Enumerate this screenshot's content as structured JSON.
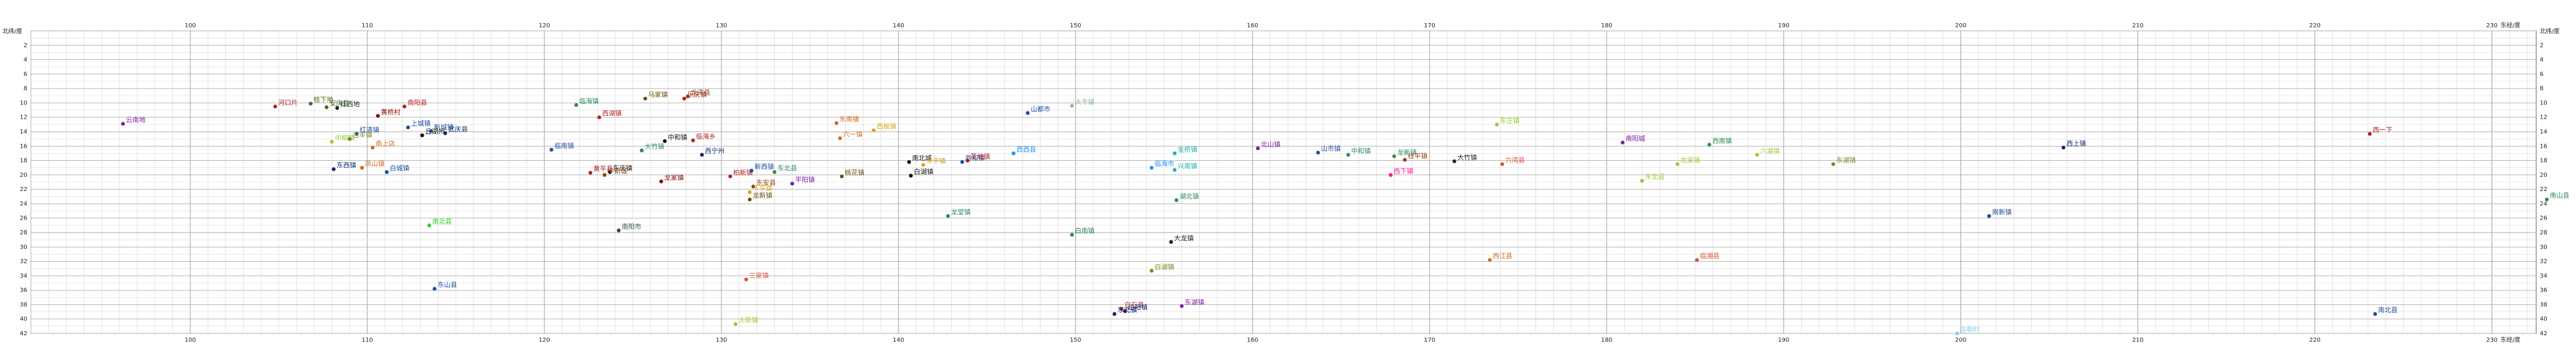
{
  "chart_data": {
    "type": "scatter",
    "xaxis_label": "东经/度",
    "yaxis_label": "北纬/度",
    "xlim": [
      91.0,
      232.5
    ],
    "ylim": [
      0,
      42
    ],
    "x_ticks": [
      100,
      110,
      120,
      130,
      140,
      150,
      160,
      170,
      180,
      190,
      200,
      210,
      220,
      230
    ],
    "y_ticks": [
      2,
      4,
      6,
      8,
      10,
      12,
      14,
      16,
      18,
      20,
      22,
      24,
      26,
      28,
      30,
      32,
      34,
      36,
      38,
      40,
      42
    ],
    "x_grid_step": 1,
    "y_grid_step": 1,
    "grid": true,
    "points": [
      {
        "x": 96.2,
        "y": 12.9,
        "label": "云南地",
        "color": "#7a1fa2"
      },
      {
        "x": 104.8,
        "y": 10.5,
        "label": "河口片",
        "color": "#b22222"
      },
      {
        "x": 106.8,
        "y": 10.1,
        "label": "桂下地",
        "color": "#3a6e1a"
      },
      {
        "x": 107.7,
        "y": 10.6,
        "label": "安庆县",
        "color": "#3a6e1a"
      },
      {
        "x": 108.3,
        "y": 10.7,
        "label": "红西地",
        "color": "#222222"
      },
      {
        "x": 110.6,
        "y": 11.8,
        "label": "黄桥村",
        "color": "#8b0000"
      },
      {
        "x": 112.1,
        "y": 10.5,
        "label": "南阳县",
        "color": "#b22222"
      },
      {
        "x": 112.3,
        "y": 13.4,
        "label": "上城镇",
        "color": "#1f4e9e"
      },
      {
        "x": 113.6,
        "y": 13.9,
        "label": "新城镇",
        "color": "#1f4e9e"
      },
      {
        "x": 114.4,
        "y": 14.2,
        "label": "武庆县",
        "color": "#0c2a6b"
      },
      {
        "x": 113.1,
        "y": 14.5,
        "label": "丘湖州",
        "color": "#111111"
      },
      {
        "x": 109.4,
        "y": 14.3,
        "label": "红清镇",
        "color": "#1f4e9e"
      },
      {
        "x": 108.0,
        "y": 15.4,
        "label": "中柳镇",
        "color": "#9acd32"
      },
      {
        "x": 109.0,
        "y": 15.0,
        "label": "古丰镇",
        "color": "#6b8e23"
      },
      {
        "x": 110.3,
        "y": 16.2,
        "label": "南上店",
        "color": "#d2691e"
      },
      {
        "x": 108.1,
        "y": 19.2,
        "label": "东西镇",
        "color": "#0c2a6b"
      },
      {
        "x": 109.7,
        "y": 19.0,
        "label": "凤山镇",
        "color": "#d2691e"
      },
      {
        "x": 111.1,
        "y": 19.6,
        "label": "白城镇",
        "color": "#1f4e9e"
      },
      {
        "x": 120.4,
        "y": 16.5,
        "label": "临南镇",
        "color": "#1f4e9e"
      },
      {
        "x": 121.8,
        "y": 10.3,
        "label": "临海镇",
        "color": "#2e8b57"
      },
      {
        "x": 123.1,
        "y": 12.0,
        "label": "西湖镇",
        "color": "#b22222"
      },
      {
        "x": 125.7,
        "y": 9.4,
        "label": "马家镇",
        "color": "#6b4f0f"
      },
      {
        "x": 127.9,
        "y": 9.4,
        "label": "乐庆镇",
        "color": "#b22222"
      },
      {
        "x": 128.1,
        "y": 9.1,
        "label": "龙湾县",
        "color": "#8b4513"
      },
      {
        "x": 125.5,
        "y": 16.6,
        "label": "大竹镇",
        "color": "#2e8b57"
      },
      {
        "x": 126.8,
        "y": 15.3,
        "label": "中和镇",
        "color": "#111111"
      },
      {
        "x": 128.4,
        "y": 15.2,
        "label": "临海乡",
        "color": "#b22222"
      },
      {
        "x": 128.9,
        "y": 17.2,
        "label": "西宁州",
        "color": "#0c2a6b"
      },
      {
        "x": 122.6,
        "y": 19.7,
        "label": "黄平县",
        "color": "#b22222"
      },
      {
        "x": 123.7,
        "y": 19.6,
        "label": "东庆镇",
        "color": "#111111"
      },
      {
        "x": 123.4,
        "y": 20.0,
        "label": "平新城",
        "color": "#8b4513"
      },
      {
        "x": 126.6,
        "y": 20.9,
        "label": "龙家镇",
        "color": "#8b0000"
      },
      {
        "x": 130.5,
        "y": 20.2,
        "label": "柏新镇",
        "color": "#b22222"
      },
      {
        "x": 131.7,
        "y": 19.4,
        "label": "新西镇",
        "color": "#1f4e9e"
      },
      {
        "x": 133.0,
        "y": 19.6,
        "label": "东北县",
        "color": "#2e8b57"
      },
      {
        "x": 131.8,
        "y": 21.6,
        "label": "东安县",
        "color": "#8b4513"
      },
      {
        "x": 131.6,
        "y": 22.4,
        "label": "下平镇",
        "color": "#daa520"
      },
      {
        "x": 131.6,
        "y": 23.4,
        "label": "龙新镇",
        "color": "#6b4f0f"
      },
      {
        "x": 134.0,
        "y": 21.2,
        "label": "平阳镇",
        "color": "#7a1fa2"
      },
      {
        "x": 136.8,
        "y": 20.2,
        "label": "桃花镇",
        "color": "#6b4f0f"
      },
      {
        "x": 136.5,
        "y": 12.8,
        "label": "东南镇",
        "color": "#d2691e"
      },
      {
        "x": 136.7,
        "y": 14.9,
        "label": "六一镇",
        "color": "#d2691e"
      },
      {
        "x": 138.6,
        "y": 13.8,
        "label": "西板镇",
        "color": "#daa520"
      },
      {
        "x": 140.6,
        "y": 18.2,
        "label": "南北城",
        "color": "#111111"
      },
      {
        "x": 141.4,
        "y": 18.6,
        "label": "丰平镇",
        "color": "#daa520"
      },
      {
        "x": 140.7,
        "y": 20.1,
        "label": "白湖镇",
        "color": "#111111"
      },
      {
        "x": 143.6,
        "y": 18.2,
        "label": "西和镇",
        "color": "#1f4e9e"
      },
      {
        "x": 143.9,
        "y": 18.0,
        "label": "花坡镇",
        "color": "#b22222"
      },
      {
        "x": 142.8,
        "y": 25.7,
        "label": "龙堂镇",
        "color": "#2e8b57"
      },
      {
        "x": 147.3,
        "y": 11.4,
        "label": "山都市",
        "color": "#1f4e9e"
      },
      {
        "x": 149.8,
        "y": 10.4,
        "label": "大丰镇",
        "color": "#8fbc8f"
      },
      {
        "x": 146.5,
        "y": 17.0,
        "label": "西西县",
        "color": "#1e90ff"
      },
      {
        "x": 149.8,
        "y": 28.3,
        "label": "白南镇",
        "color": "#2e8b57"
      },
      {
        "x": 154.3,
        "y": 19.0,
        "label": "临海市",
        "color": "#1e90ff"
      },
      {
        "x": 155.6,
        "y": 17.0,
        "label": "金桥镇",
        "color": "#20b2aa"
      },
      {
        "x": 155.6,
        "y": 19.3,
        "label": "兴南镇",
        "color": "#20b2aa"
      },
      {
        "x": 155.7,
        "y": 23.5,
        "label": "湖北镇",
        "color": "#2e8b57"
      },
      {
        "x": 155.4,
        "y": 29.3,
        "label": "大龙镇",
        "color": "#222222"
      },
      {
        "x": 154.3,
        "y": 33.3,
        "label": "白湖镇",
        "color": "#6b8e23"
      },
      {
        "x": 156.0,
        "y": 38.2,
        "label": "东湖镇",
        "color": "#7a1fa2"
      },
      {
        "x": 152.6,
        "y": 38.6,
        "label": "白石县",
        "color": "#b22222"
      },
      {
        "x": 152.8,
        "y": 38.9,
        "label": "山阳镇",
        "color": "#0c2a6b"
      },
      {
        "x": 152.2,
        "y": 39.3,
        "label": "东北镇",
        "color": "#0c2a6b"
      },
      {
        "x": 131.4,
        "y": 34.5,
        "label": "三家镇",
        "color": "#e1503a"
      },
      {
        "x": 130.8,
        "y": 40.7,
        "label": "大新镇",
        "color": "#9acd32"
      },
      {
        "x": 113.8,
        "y": 35.8,
        "label": "东山县",
        "color": "#1f4e9e"
      },
      {
        "x": 113.5,
        "y": 27.0,
        "label": "南北县",
        "color": "#32cd32"
      },
      {
        "x": 124.2,
        "y": 27.7,
        "label": "南阳市",
        "color": "#2f4f4f"
      },
      {
        "x": 160.3,
        "y": 16.3,
        "label": "北山镇",
        "color": "#7a1fa2"
      },
      {
        "x": 163.7,
        "y": 16.9,
        "label": "山市镇",
        "color": "#1f4e9e"
      },
      {
        "x": 165.4,
        "y": 17.2,
        "label": "中和镇",
        "color": "#2e8b57"
      },
      {
        "x": 168.0,
        "y": 17.4,
        "label": "龙新镇",
        "color": "#2e8b57"
      },
      {
        "x": 168.6,
        "y": 17.9,
        "label": "桂平镇",
        "color": "#8b4513"
      },
      {
        "x": 171.4,
        "y": 18.1,
        "label": "大竹镇",
        "color": "#222222"
      },
      {
        "x": 167.8,
        "y": 20.0,
        "label": "西下镇",
        "color": "#ff1493"
      },
      {
        "x": 174.1,
        "y": 18.5,
        "label": "六湾县",
        "color": "#e1503a"
      },
      {
        "x": 173.8,
        "y": 13.0,
        "label": "东庄镇",
        "color": "#9acd32"
      },
      {
        "x": 180.9,
        "y": 15.5,
        "label": "南阳城",
        "color": "#7a1fa2"
      },
      {
        "x": 182.0,
        "y": 20.8,
        "label": "东北县",
        "color": "#9acd32"
      },
      {
        "x": 184.0,
        "y": 18.5,
        "label": "北安镇",
        "color": "#9acd32"
      },
      {
        "x": 185.8,
        "y": 15.8,
        "label": "西南镇",
        "color": "#2e8b57"
      },
      {
        "x": 188.5,
        "y": 17.2,
        "label": "六湖镇",
        "color": "#9acd32"
      },
      {
        "x": 192.8,
        "y": 18.5,
        "label": "东湖镇",
        "color": "#6b8e23"
      },
      {
        "x": 185.1,
        "y": 31.8,
        "label": "临湘县",
        "color": "#e1503a"
      },
      {
        "x": 173.4,
        "y": 31.8,
        "label": "西江县",
        "color": "#d2691e"
      },
      {
        "x": 199.8,
        "y": 42.0,
        "label": "吉朝村",
        "color": "#87ceeb"
      },
      {
        "x": 201.6,
        "y": 25.7,
        "label": "南新镇",
        "color": "#1f4e9e"
      },
      {
        "x": 205.8,
        "y": 16.2,
        "label": "西上镇",
        "color": "#0c2a6b"
      },
      {
        "x": 223.1,
        "y": 14.3,
        "label": "西一下",
        "color": "#b22222"
      },
      {
        "x": 223.4,
        "y": 39.3,
        "label": "南北县",
        "color": "#1f4e9e"
      },
      {
        "x": 233.1,
        "y": 23.4,
        "label": "南山县",
        "color": "#2e8b57"
      }
    ]
  }
}
